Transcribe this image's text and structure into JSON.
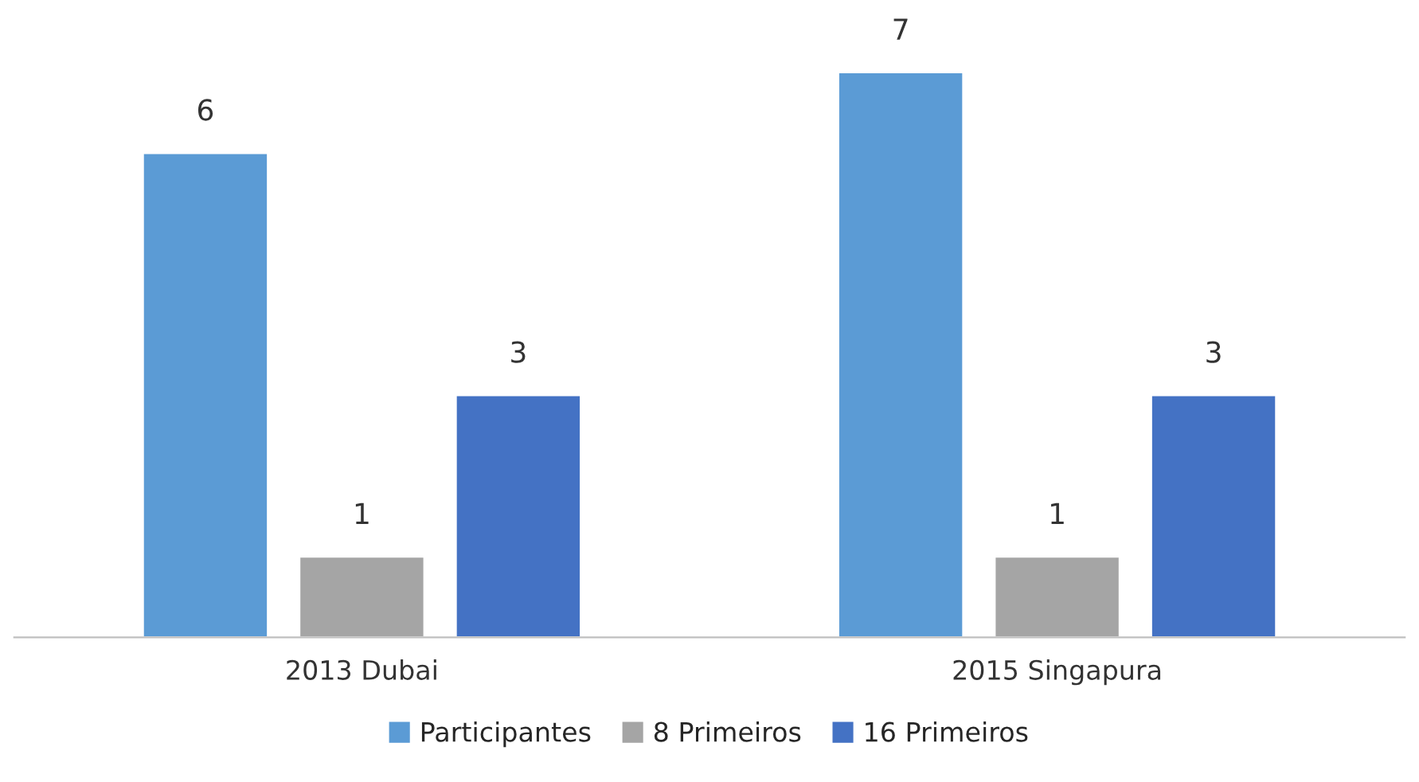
{
  "chart_data": {
    "type": "bar",
    "categories": [
      "2013 Dubai",
      "2015 Singapura"
    ],
    "series": [
      {
        "name": "Participantes",
        "color": "#5b9bd5",
        "values": [
          6,
          7
        ]
      },
      {
        "name": "8 Primeiros",
        "color": "#a5a5a5",
        "values": [
          1,
          1
        ]
      },
      {
        "name": "16 Primeiros",
        "color": "#4472c4",
        "values": [
          3,
          3
        ]
      }
    ],
    "data_labels": true,
    "legend": "bottom",
    "grid": false,
    "tick_labels": "x"
  }
}
